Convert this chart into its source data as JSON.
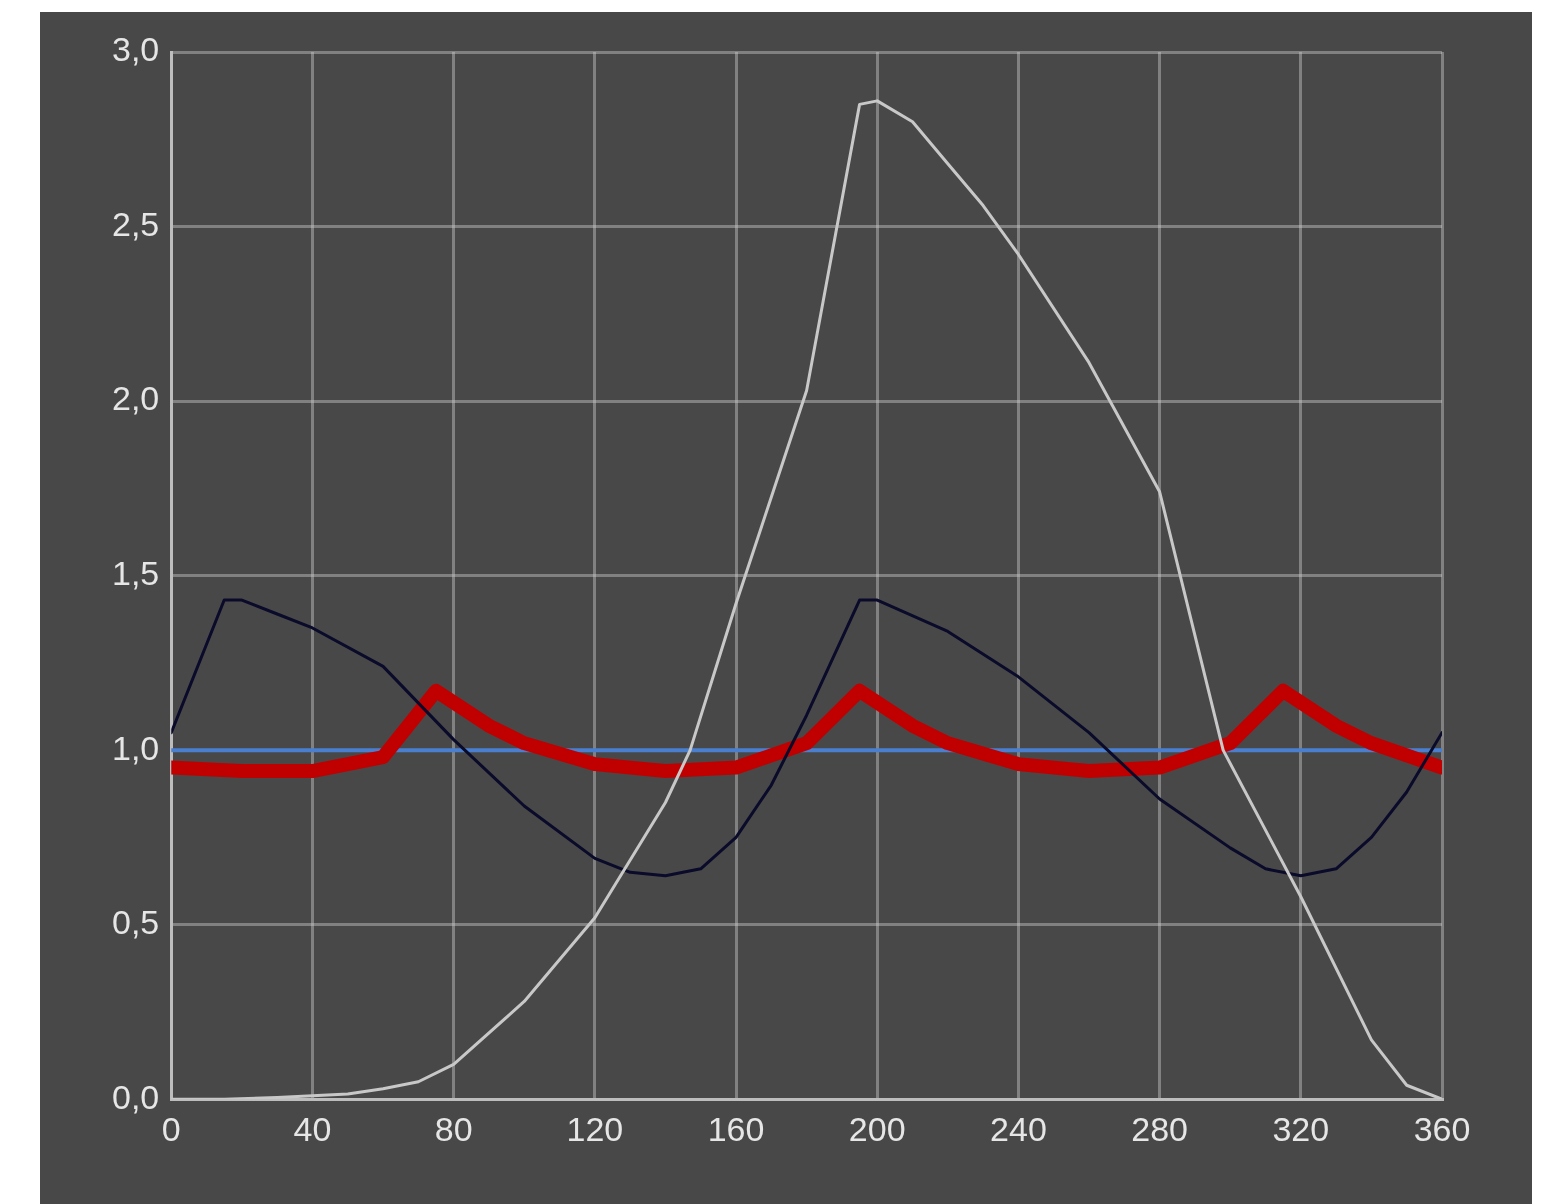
{
  "chart_data": {
    "type": "line",
    "xlim": [
      0,
      360
    ],
    "xticks": [
      0,
      40,
      80,
      120,
      160,
      200,
      240,
      280,
      320,
      360
    ],
    "ylim": [
      0,
      3
    ],
    "yticks": [
      {
        "value": 0,
        "label": "0,0"
      },
      {
        "value": 0.5,
        "label": "0,5"
      },
      {
        "value": 1,
        "label": "1,0"
      },
      {
        "value": 1.5,
        "label": "1,5"
      },
      {
        "value": 2,
        "label": "2,0"
      },
      {
        "value": 2.5,
        "label": "2,5"
      },
      {
        "value": 3,
        "label": "3,0"
      }
    ],
    "grid": true,
    "marker": "none",
    "line_style": "solid",
    "series": [
      {
        "color": "#c8c8c8",
        "x": [
          0,
          15,
          30,
          40,
          50,
          60,
          70,
          80,
          100,
          120,
          140,
          147,
          160,
          180,
          195,
          200,
          210,
          220,
          230,
          240,
          260,
          280,
          298,
          320,
          340,
          350,
          360
        ],
        "values": [
          0,
          0,
          0.005,
          0.01,
          0.015,
          0.03,
          0.05,
          0.1,
          0.28,
          0.52,
          0.85,
          1.0,
          1.42,
          2.03,
          2.85,
          2.86,
          2.8,
          2.68,
          2.56,
          2.42,
          2.11,
          1.74,
          1.0,
          0.58,
          0.17,
          0.04,
          0
        ]
      },
      {
        "color": "#0a0a2a",
        "x": [
          0,
          15,
          20,
          30,
          40,
          60,
          80,
          100,
          120,
          130,
          140,
          150,
          160,
          170,
          180,
          195,
          200,
          220,
          240,
          260,
          280,
          300,
          310,
          320,
          330,
          340,
          350,
          360
        ],
        "values": [
          1.05,
          1.43,
          1.43,
          1.39,
          1.35,
          1.24,
          1.03,
          0.84,
          0.69,
          0.65,
          0.64,
          0.66,
          0.75,
          0.9,
          1.1,
          1.43,
          1.43,
          1.34,
          1.21,
          1.05,
          0.86,
          0.72,
          0.66,
          0.64,
          0.66,
          0.75,
          0.88,
          1.05
        ]
      },
      {
        "color": "#c00000",
        "x": [
          0,
          20,
          40,
          60,
          75,
          90,
          100,
          120,
          140,
          160,
          180,
          195,
          210,
          220,
          240,
          260,
          280,
          300,
          315,
          330,
          340,
          360
        ],
        "values": [
          0.95,
          0.94,
          0.94,
          0.98,
          1.17,
          1.07,
          1.02,
          0.96,
          0.94,
          0.95,
          1.02,
          1.17,
          1.07,
          1.02,
          0.96,
          0.94,
          0.95,
          1.02,
          1.17,
          1.07,
          1.02,
          0.95
        ]
      },
      {
        "color": "#4a7fd0",
        "x": [
          0,
          360
        ],
        "values": [
          1,
          1
        ]
      }
    ]
  }
}
